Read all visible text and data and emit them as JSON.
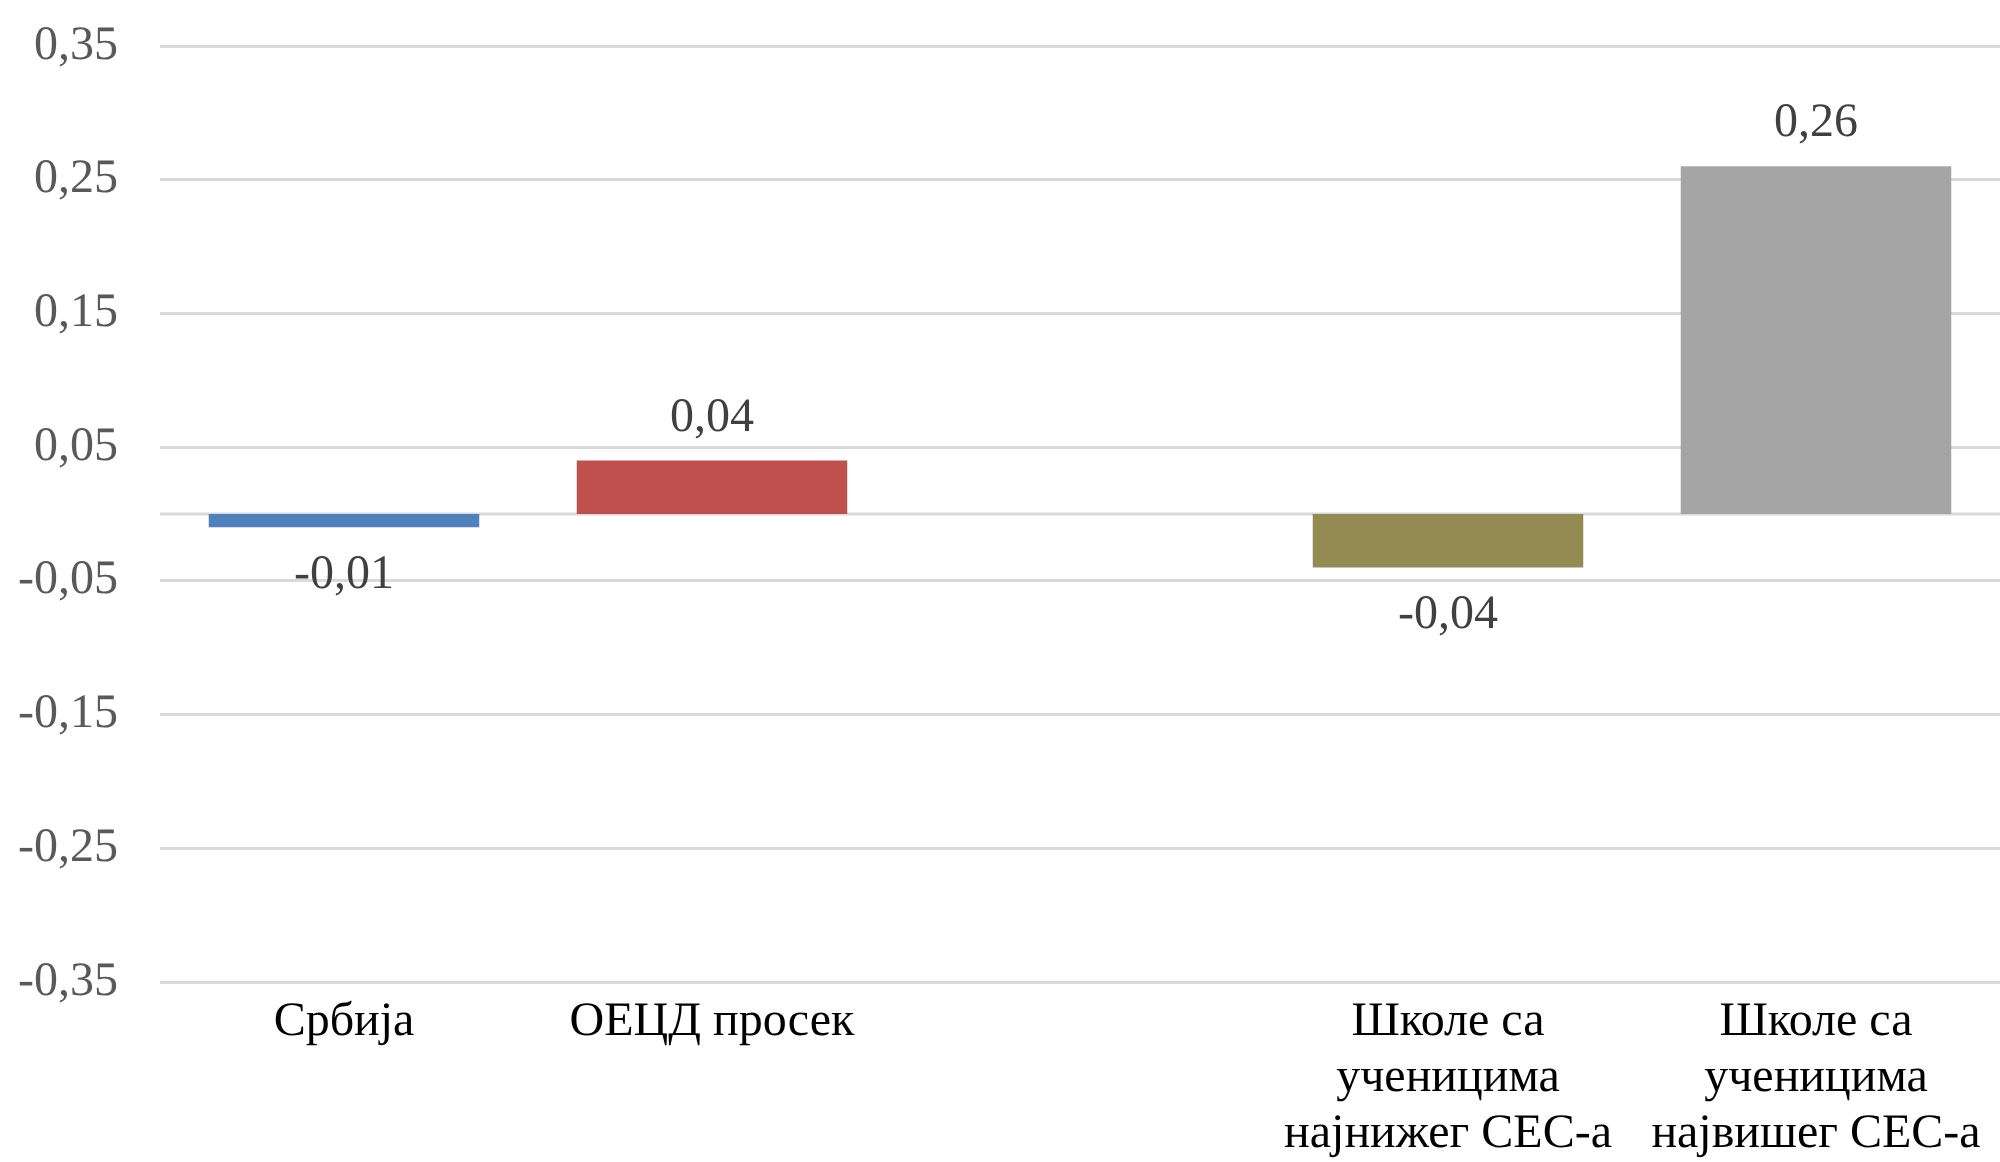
{
  "chart_data": {
    "type": "bar",
    "categories": [
      "Србија",
      "ОЕЦД просек",
      null,
      "Школе са ученицима најнижег СЕС-а",
      "Школе са ученицима највишег СЕС-а"
    ],
    "values": [
      -0.01,
      0.04,
      null,
      -0.04,
      0.26
    ],
    "colors": [
      "#4f81bd",
      "#c0504d",
      null,
      "#948a54",
      "#a5a5a5"
    ],
    "value_labels": [
      "-0,01",
      "0,04",
      null,
      "-0,04",
      "0,26"
    ],
    "ylim": [
      -0.35,
      0.35
    ],
    "yticks": [
      {
        "value": -0.35,
        "label": "-0,35"
      },
      {
        "value": -0.25,
        "label": "-0,25"
      },
      {
        "value": -0.15,
        "label": "-0,15"
      },
      {
        "value": -0.05,
        "label": "-0,05"
      },
      {
        "value": 0.05,
        "label": "0,05"
      },
      {
        "value": 0.15,
        "label": "0,15"
      },
      {
        "value": 0.25,
        "label": "0,25"
      },
      {
        "value": 0.35,
        "label": "0,35"
      }
    ],
    "grid": "y"
  }
}
